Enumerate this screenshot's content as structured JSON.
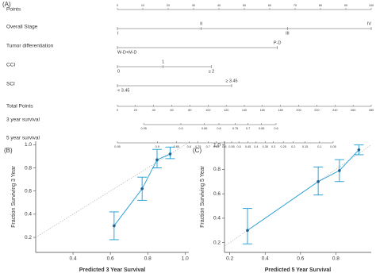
{
  "chart_data": [
    {
      "type": "nomogram",
      "label": "(A)",
      "points_axis": {
        "name": "Points",
        "lim": [
          0,
          100
        ],
        "ticks": [
          0,
          10,
          20,
          30,
          40,
          50,
          60,
          70,
          80,
          90,
          100
        ]
      },
      "variables": [
        {
          "name": "Overall Stage",
          "levels": [
            "I",
            "II",
            "III",
            "IV"
          ],
          "points": [
            0,
            33,
            67,
            100
          ]
        },
        {
          "name": "Tumor differentiation",
          "levels": [
            "W-D+M-D",
            "P-D"
          ],
          "points": [
            0,
            63
          ]
        },
        {
          "name": "CCI",
          "levels": [
            "0",
            "1",
            "≥ 2"
          ],
          "points": [
            0,
            18,
            37
          ]
        },
        {
          "name": "SCI",
          "levels": [
            "< 3.45",
            "≥ 3.45"
          ],
          "points": [
            0,
            45
          ]
        }
      ],
      "total_axis": {
        "name": "Total Points",
        "lim": [
          0,
          280
        ],
        "ticks": [
          0,
          20,
          40,
          60,
          80,
          100,
          120,
          140,
          160,
          180,
          200,
          220,
          240,
          260,
          280
        ]
      },
      "survival_axes": [
        {
          "name": "3 year survival",
          "ticks": [
            0.95,
            0.9,
            0.85,
            0.8,
            0.75,
            0.7,
            0.65,
            0.6
          ],
          "points": [
            29,
            70,
            96,
            112,
            130,
            144,
            159,
            175
          ]
        },
        {
          "name": "5 year survival",
          "ticks": [
            0.95,
            0.9,
            0.85,
            0.8,
            0.75,
            0.7,
            0.65,
            0.6,
            0.55,
            0.5,
            0.45,
            0.4,
            0.35,
            0.3,
            0.25,
            0.2,
            0.15,
            0.1,
            0.05
          ],
          "points": [
            0,
            44,
            65,
            79,
            89,
            100,
            109,
            118,
            126,
            134,
            144,
            153,
            163,
            172,
            183,
            194,
            207,
            223,
            238
          ]
        }
      ]
    },
    {
      "type": "calibration",
      "label": "(B)",
      "x_label": "Predicted 3 Year Survival",
      "y_label": "Fraction Surviving 3 Year",
      "color": "#1a9bd7",
      "xlim": [
        0.2,
        1.02
      ],
      "ylim": [
        0.07,
        1.03
      ],
      "xticks": [
        0.4,
        0.6,
        0.8,
        {
          "value": 1,
          "label": "1.0"
        }
      ],
      "yticks": [
        0.2,
        0.4,
        0.6,
        0.8,
        {
          "value": 1,
          "label": "1.0"
        }
      ],
      "x": [
        0.62,
        0.77,
        0.85,
        0.92
      ],
      "y": [
        0.3,
        0.62,
        0.87,
        0.92
      ],
      "lower": [
        0.18,
        0.52,
        0.8,
        0.88
      ],
      "upper": [
        0.42,
        0.72,
        0.96,
        0.98
      ]
    },
    {
      "type": "calibration",
      "label": "(C)",
      "x_label": "Predicted 5 Year Survival",
      "y_label": "Fraction Surviving 5 Year",
      "color": "#1a9bd7",
      "xlim": [
        0.17,
        1.0
      ],
      "ylim": [
        0.12,
        1.03
      ],
      "xticks": [
        0.2,
        0.4,
        0.6,
        0.8
      ],
      "yticks": [
        0.2,
        0.4,
        0.6,
        0.8,
        {
          "value": 1,
          "label": "1.0"
        }
      ],
      "x": [
        0.3,
        0.7,
        0.82,
        0.93
      ],
      "y": [
        0.3,
        0.7,
        0.79,
        0.96
      ],
      "lower": [
        0.19,
        0.59,
        0.7,
        0.92
      ],
      "upper": [
        0.48,
        0.82,
        0.88,
        1.0
      ]
    }
  ]
}
